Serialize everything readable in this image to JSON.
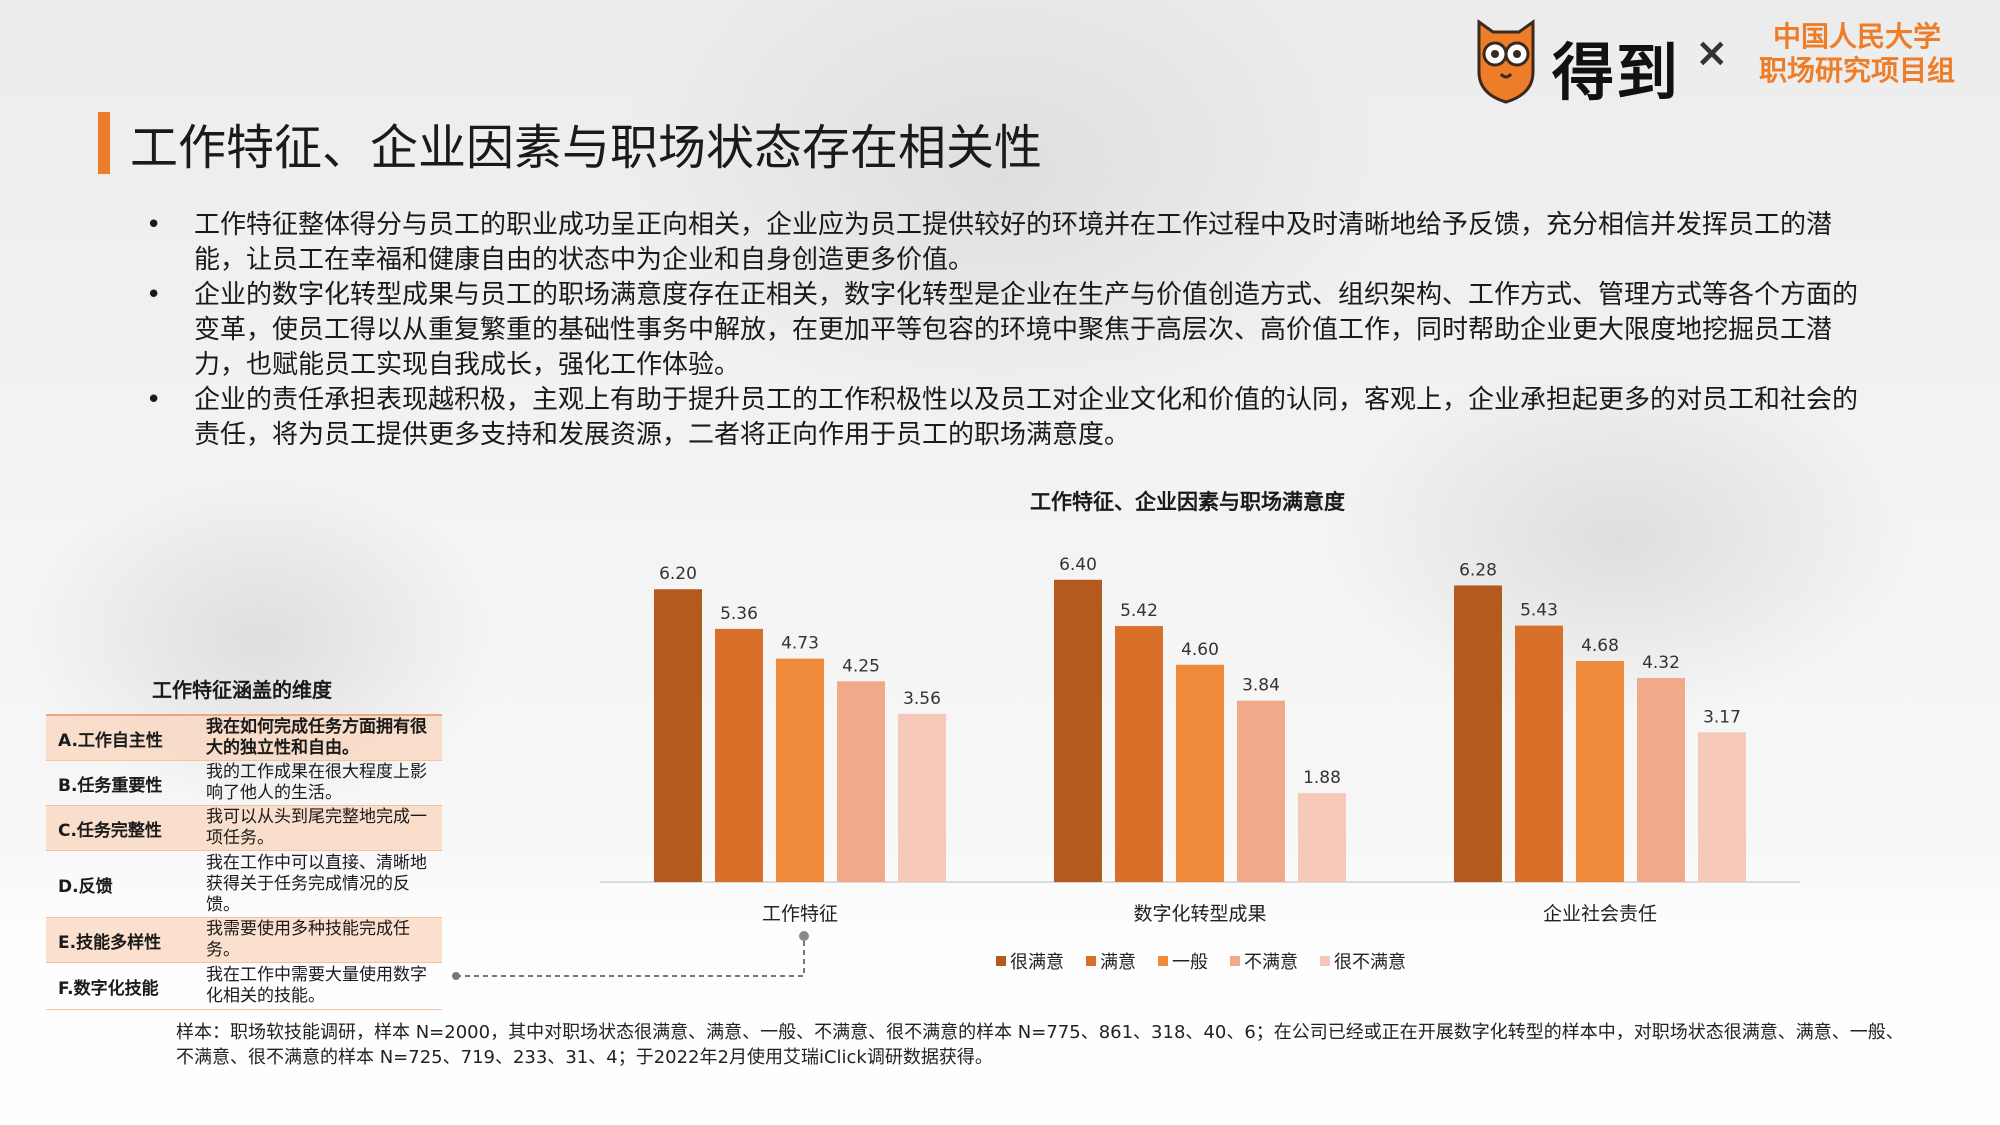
{
  "brand": {
    "name": "得到",
    "times": "×",
    "partner_line1": "中国人民大学",
    "partner_line2": "职场研究项目组"
  },
  "title": "工作特征、企业因素与职场状态存在相关性",
  "bullet_char": "•",
  "bullets": [
    "工作特征整体得分与员工的职业成功呈正向相关，企业应为员工提供较好的环境并在工作过程中及时清晰地给予反馈，充分相信并发挥员工的潜能，让员工在幸福和健康自由的状态中为企业和自身创造更多价值。",
    "企业的数字化转型成果与员工的职场满意度存在正相关，数字化转型是企业在生产与价值创造方式、组织架构、工作方式、管理方式等各个方面的变革，使员工得以从重复繁重的基础性事务中解放，在更加平等包容的环境中聚焦于高层次、高价值工作，同时帮助企业更大限度地挖掘员工潜力，也赋能员工实现自我成长，强化工作体验。",
    "企业的责任承担表现越积极，主观上有助于提升员工的工作积极性以及员工对企业文化和价值的认同，客观上，企业承担起更多的对员工和社会的责任，将为员工提供更多支持和发展资源，二者将正向作用于员工的职场满意度。"
  ],
  "chart_data": {
    "type": "bar",
    "title": "工作特征、企业因素与职场满意度",
    "categories": [
      "工作特征",
      "数字化转型成果",
      "企业社会责任"
    ],
    "series": [
      {
        "name": "很满意",
        "values": [
          6.2,
          6.4,
          6.28
        ],
        "color": "#b45a1e"
      },
      {
        "name": "满意",
        "values": [
          5.36,
          5.42,
          5.43
        ],
        "color": "#d8702a"
      },
      {
        "name": "一般",
        "values": [
          4.73,
          4.6,
          4.68
        ],
        "color": "#ef8a3a"
      },
      {
        "name": "不满意",
        "values": [
          4.25,
          3.84,
          4.32
        ],
        "color": "#f1a98a"
      },
      {
        "name": "很不满意",
        "values": [
          3.56,
          1.88,
          3.17
        ],
        "color": "#f6c8b8"
      }
    ],
    "labels": [
      [
        "6.20",
        "5.36",
        "4.73",
        "4.25",
        "3.56"
      ],
      [
        "6.40",
        "5.42",
        "4.60",
        "3.84",
        "1.88"
      ],
      [
        "6.28",
        "5.43",
        "4.68",
        "4.32",
        "3.17"
      ]
    ],
    "ylim": [
      0,
      7
    ],
    "legend_position": "bottom",
    "grid": false
  },
  "dimensions": {
    "title": "工作特征涵盖的维度",
    "rows": [
      {
        "key": "A.工作自主性",
        "desc": "我在如何完成任务方面拥有很大的独立性和自由。"
      },
      {
        "key": "B.任务重要性",
        "desc": "我的工作成果在很大程度上影响了他人的生活。"
      },
      {
        "key": "C.任务完整性",
        "desc": "我可以从头到尾完整地完成一项任务。"
      },
      {
        "key": "D.反馈",
        "desc": "我在工作中可以直接、清晰地获得关于任务完成情况的反馈。"
      },
      {
        "key": "E.技能多样性",
        "desc": "我需要使用多种技能完成任务。"
      },
      {
        "key": "F.数字化技能",
        "desc": "我在工作中需要大量使用数字化相关的技能。"
      }
    ]
  },
  "note": "样本：职场软技能调研，样本 N=2000，其中对职场状态很满意、满意、一般、不满意、很不满意的样本 N=775、861、318、40、6；在公司已经或正在开展数字化转型的样本中，对职场状态很满意、满意、一般、不满意、很不满意的样本 N=725、719、233、31、4；于2022年2月使用艾瑞iClick调研数据获得。"
}
